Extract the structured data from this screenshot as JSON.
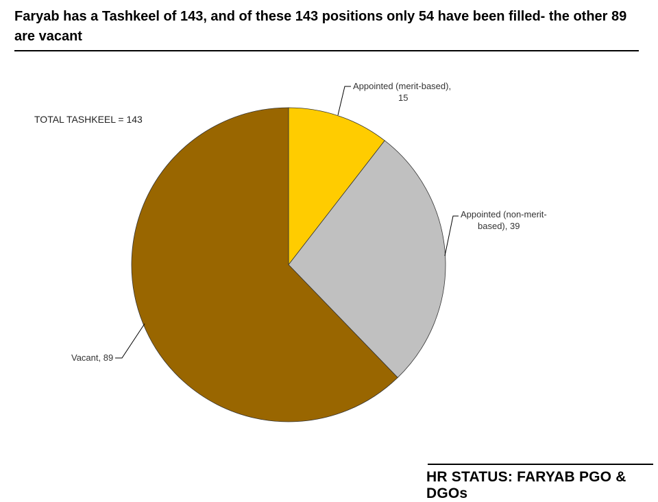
{
  "header": {
    "title": "Faryab has a Tashkeel of 143, and of these 143 positions only 54 have been filled- the other 89 are vacant"
  },
  "annotation": {
    "total_text": "TOTAL TASHKEEL = 143"
  },
  "footer": {
    "text": "HR STATUS: FARYAB PGO & DGOs"
  },
  "chart_data": {
    "type": "pie",
    "title": "",
    "slices": [
      {
        "label_lines": [
          "Appointed (merit-based),",
          "15"
        ],
        "value": 15,
        "color": "#ffcc00"
      },
      {
        "label_lines": [
          "Appointed (non-merit-",
          "based), 39"
        ],
        "value": 39,
        "color": "#c0c0c0"
      },
      {
        "label_lines": [
          "Vacant, 89"
        ],
        "value": 89,
        "color": "#996600"
      }
    ],
    "total": 143,
    "start_angle_deg": 0,
    "direction": "clockwise",
    "legend": "none",
    "data_labels": "outside-with-leader-lines"
  }
}
